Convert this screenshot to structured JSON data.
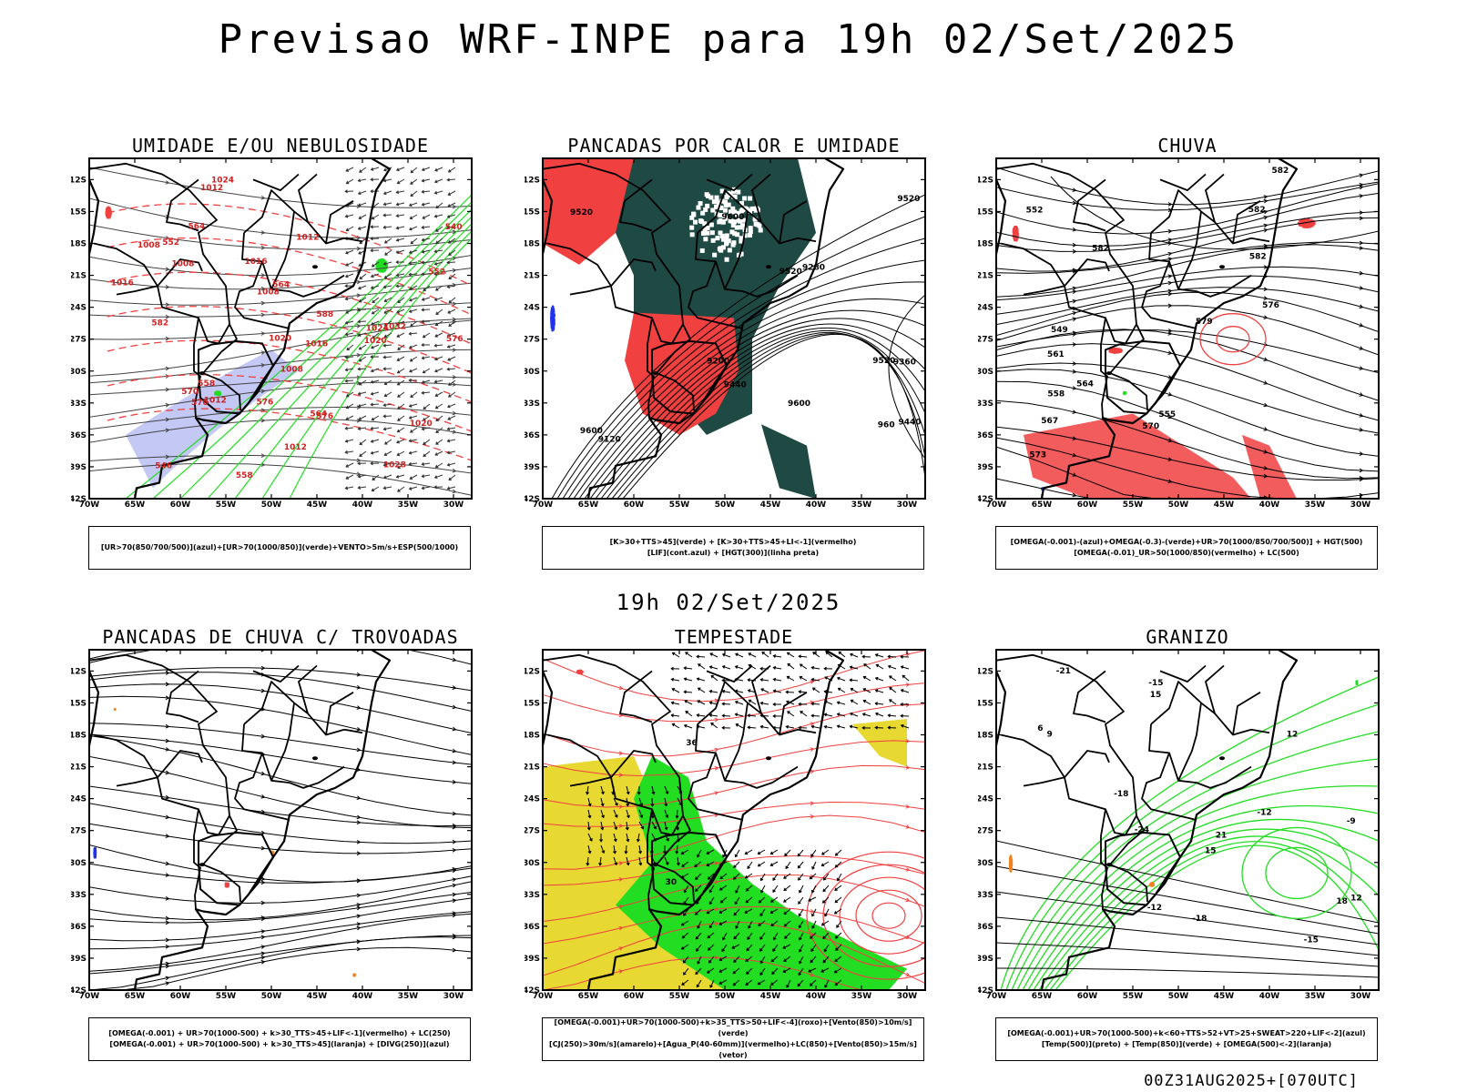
{
  "title": "Previsao WRF-INPE  para 19h 02/Set/2025",
  "mid_title": "19h 02/Set/2025",
  "footer": "00Z31AUG2025+[070UTC]",
  "axes": {
    "lat_labels": [
      "12S",
      "15S",
      "18S",
      "21S",
      "24S",
      "27S",
      "30S",
      "33S",
      "36S",
      "39S",
      "42S"
    ],
    "lon_labels": [
      "70W",
      "65W",
      "60W",
      "55W",
      "50W",
      "45W",
      "40W",
      "35W",
      "30W"
    ]
  },
  "colors": {
    "red": "#f04040",
    "green": "#22dd22",
    "blue": "#2233ee",
    "lavender": "#aab0f0",
    "darkgreen": "#1f4a44",
    "yellow": "#e8d832",
    "orange": "#f08020",
    "purple": "#8040c0"
  },
  "panels": [
    {
      "id": "umidade",
      "title": "UMIDADE E/OU NEBULOSIDADE",
      "caption": [
        "[UR>70(850/700/500)](azul)+[UR>70(1000/850)](verde)+VENTO>5m/s+ESP(500/1000)"
      ],
      "labels": [
        "1008",
        "1008",
        "1008",
        "1012",
        "1012",
        "1012",
        "1016",
        "1016",
        "1020",
        "1020",
        "1024",
        "1024",
        "1028",
        "1032",
        "1008",
        "1012",
        "1016",
        "1020",
        "570",
        "576",
        "576",
        "570",
        "564",
        "558",
        "552",
        "546",
        "540",
        "576",
        "564",
        "582",
        "588",
        "564",
        "552",
        "558"
      ]
    },
    {
      "id": "pancadas-calor",
      "title": "PANCADAS POR CALOR E UMIDADE",
      "caption": [
        "[K>30+TTS>45](verde) + [K>30+TTS>45+LI<-1](vermelho)",
        "[LIF](cont.azul) + [HGT(300)](linha preta)"
      ],
      "labels": [
        "9600",
        "9600",
        "9600",
        "9520",
        "9520",
        "9520",
        "9520",
        "9440",
        "9440",
        "9360",
        "9280",
        "9200",
        "9120",
        "960"
      ]
    },
    {
      "id": "chuva",
      "title": "CHUVA",
      "caption": [
        "[OMEGA(-0.001)-(azul)+OMEGA(-0.3)-(verde)+UR>70(1000/850/700/500)] + HGT(500)",
        "[OMEGA(-0.01)_UR>50(1000/850)(vermelho) + LC(500)"
      ],
      "labels": [
        "582",
        "582",
        "582",
        "582",
        "579",
        "576",
        "573",
        "570",
        "567",
        "564",
        "561",
        "558",
        "555",
        "552",
        "549"
      ]
    },
    {
      "id": "pancadas-trovoadas",
      "title": "PANCADAS DE CHUVA C/ TROVOADAS",
      "caption": [
        "[OMEGA(-0.001) + UR>70(1000-500) + k>30_TTS>45+LIF<-1](vermelho) + LC(250)",
        "[OMEGA(-0.001) + UR>70(1000-500) + k>30_TTS>45](laranja) + [DIVG(250)](azul)"
      ],
      "labels": []
    },
    {
      "id": "tempestade",
      "title": "TEMPESTADE",
      "caption": [
        "[OMEGA(-0.001)+UR>70(1000-500)+k>35_TTS>50+LIF<-4](roxo)+[Vento(850)>10m/s](verde)",
        "[CJ(250)>30m/s](amarelo)+[Agua_P(40-60mm)](vermelho)+LC(850)+[Vento(850)>15m/s](vetor)"
      ],
      "labels": [
        "30",
        "36"
      ]
    },
    {
      "id": "granizo",
      "title": "GRANIZO",
      "caption": [
        "[OMEGA(-0.001)+UR>70(1000-500)+k<60+TTS>52+VT>25+SWEAT>220+LIF<-2](azul)",
        "[Temp(500)](preto) + [Temp(850)](verde) + [OMEGA(500)<-2](laranja)"
      ],
      "labels": [
        "21",
        "18",
        "15",
        "12",
        "15",
        "12",
        "9",
        "6",
        "-12",
        "-15",
        "-18",
        "-21",
        "-24",
        "-15",
        "-18",
        "-9",
        "-12"
      ]
    }
  ]
}
